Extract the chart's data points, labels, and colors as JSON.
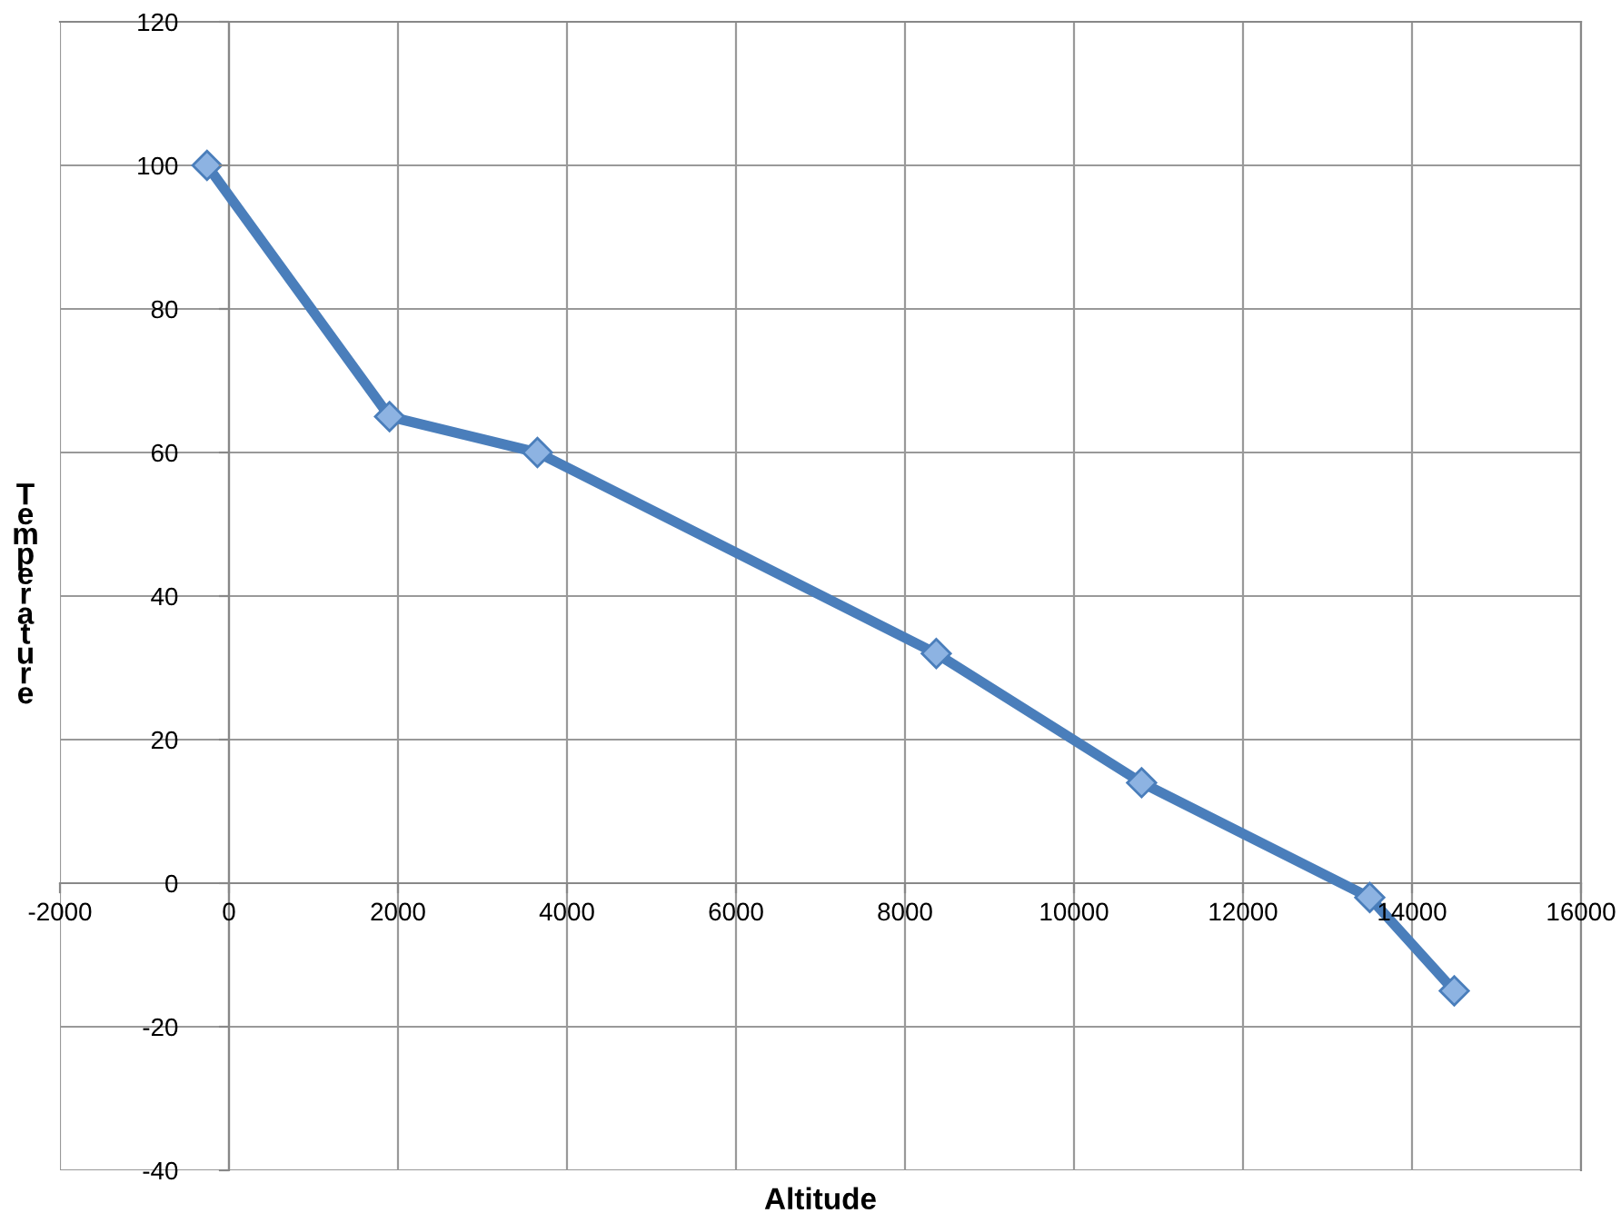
{
  "chart_data": {
    "type": "line",
    "xlabel": "Altitude",
    "ylabel": "Temperature",
    "x": [
      -260,
      1900,
      3650,
      8370,
      10800,
      13500,
      14500
    ],
    "series": [
      {
        "color": "#4a7ebb",
        "values": [
          100,
          65,
          60,
          32,
          14,
          -2,
          -15
        ]
      }
    ],
    "xlim": [
      -2000,
      16000
    ],
    "xticks": [
      -2000,
      0,
      2000,
      4000,
      6000,
      8000,
      10000,
      12000,
      14000,
      16000
    ],
    "ylim": [
      -40,
      120
    ],
    "yticks": [
      -40,
      -20,
      0,
      20,
      40,
      60,
      80,
      100,
      120
    ],
    "grid": true,
    "marker": "diamond",
    "line_style": "solid"
  }
}
